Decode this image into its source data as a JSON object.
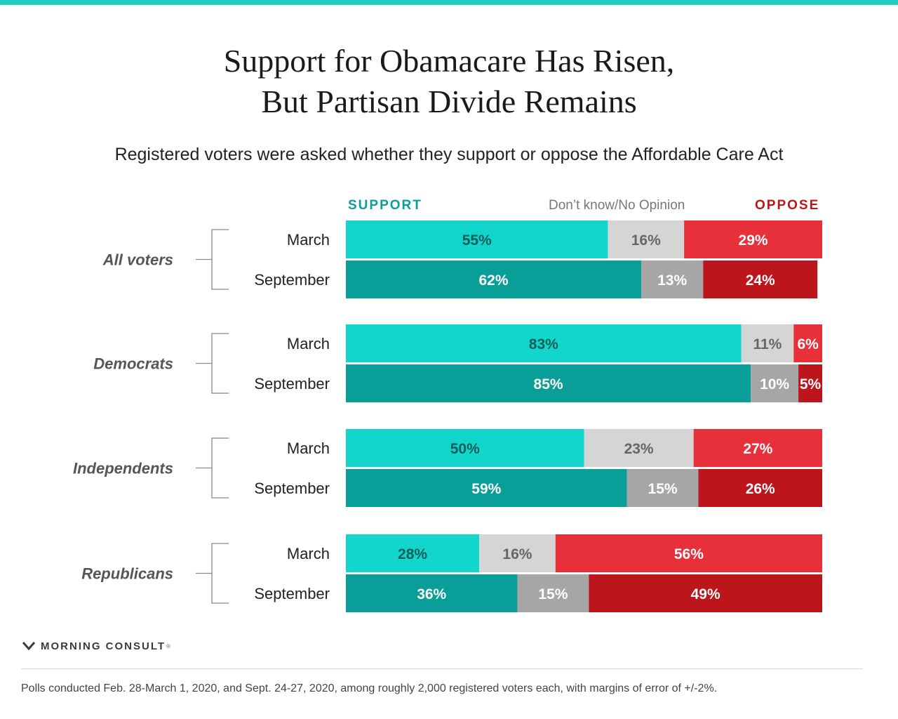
{
  "colors": {
    "accent_top": "#1fcdc2",
    "support_march": "#12d6cb",
    "support_september": "#0a9e98",
    "dk_march": "#d5d5d5",
    "dk_september": "#a6a6a6",
    "oppose_march": "#e8303a",
    "oppose_september": "#bd151c",
    "label_dark_teal": "#0b5e5a",
    "label_dark_gray": "#666666",
    "label_white": "#ffffff",
    "bracket": "#888888",
    "group_label": "#555555"
  },
  "header": {
    "title_line1": "Support for Obamacare Has Risen,",
    "title_line2": "But Partisan Divide Remains",
    "subtitle": "Registered voters were asked whether they support or oppose the Affordable Care Act"
  },
  "legend": {
    "support": "SUPPORT",
    "dont_know": "Don’t know/No Opinion",
    "oppose": "OPPOSE"
  },
  "chart_data": {
    "type": "bar",
    "orientation": "horizontal",
    "stacked": true,
    "xlim": [
      0,
      100
    ],
    "unit": "%",
    "series": [
      {
        "name": "SUPPORT"
      },
      {
        "name": "Don’t know/No Opinion"
      },
      {
        "name": "OPPOSE"
      }
    ],
    "groups": [
      {
        "label": "All voters",
        "rows": [
          {
            "label": "March",
            "values": [
              55,
              16,
              29
            ],
            "labels": [
              "55%",
              "16%",
              "29%"
            ]
          },
          {
            "label": "September",
            "values": [
              62,
              13,
              24
            ],
            "labels": [
              "62%",
              "13%",
              "24%"
            ]
          }
        ]
      },
      {
        "label": "Democrats",
        "rows": [
          {
            "label": "March",
            "values": [
              83,
              11,
              6
            ],
            "labels": [
              "83%",
              "11%",
              "6%"
            ]
          },
          {
            "label": "September",
            "values": [
              85,
              10,
              5
            ],
            "labels": [
              "85%",
              "10%",
              "5%"
            ]
          }
        ]
      },
      {
        "label": "Independents",
        "rows": [
          {
            "label": "March",
            "values": [
              50,
              23,
              27
            ],
            "labels": [
              "50%",
              "23%",
              "27%"
            ]
          },
          {
            "label": "September",
            "values": [
              59,
              15,
              26
            ],
            "labels": [
              "59%",
              "15%",
              "26%"
            ]
          }
        ]
      },
      {
        "label": "Republicans",
        "rows": [
          {
            "label": "March",
            "values": [
              28,
              16,
              56
            ],
            "labels": [
              "28%",
              "16%",
              "56%"
            ]
          },
          {
            "label": "September",
            "values": [
              36,
              15,
              49
            ],
            "labels": [
              "36%",
              "15%",
              "49%"
            ]
          }
        ]
      }
    ]
  },
  "brand": {
    "name": "MORNING CONSULT",
    "mark": "®",
    "icon": "morning-consult-logo-icon"
  },
  "footnote": "Polls conducted Feb. 28-March 1, 2020, and Sept. 24-27, 2020, among roughly 2,000 registered voters each, with margins of error of +/-2%."
}
